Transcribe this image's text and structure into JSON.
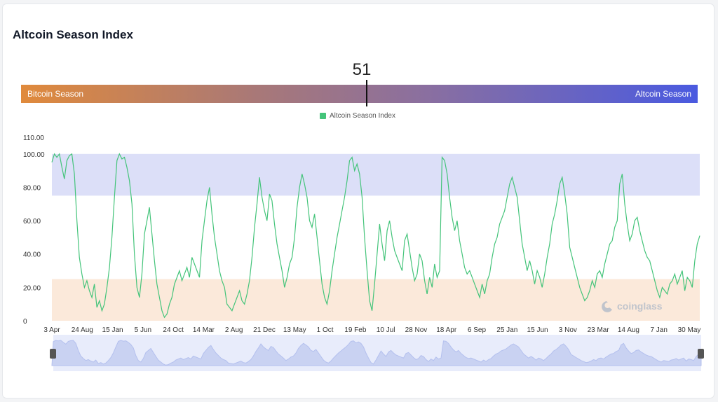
{
  "card": {
    "title": "Altcoin Season Index",
    "current_value": "51",
    "gradient_bar": {
      "left_label": "Bitcoin Season",
      "right_label": "Altcoin Season",
      "marker_value": 51
    },
    "watermark": "coinglass"
  },
  "chart_data": {
    "type": "line",
    "title": "",
    "xlabel": "",
    "ylabel": "",
    "ylim": [
      0,
      110
    ],
    "y_ticks": [
      "0",
      "20.00",
      "40.00",
      "60.00",
      "80.00",
      "100.00",
      "110.00"
    ],
    "x_ticks": [
      "3 Apr",
      "24 Aug",
      "15 Jan",
      "5 Jun",
      "24 Oct",
      "14 Mar",
      "2 Aug",
      "21 Dec",
      "13 May",
      "1 Oct",
      "19 Feb",
      "10 Jul",
      "28 Nov",
      "18 Apr",
      "6 Sep",
      "25 Jan",
      "15 Jun",
      "3 Nov",
      "23 Mar",
      "14 Aug",
      "7 Jan",
      "30 May"
    ],
    "legend": {
      "position": "top-center"
    },
    "zones": [
      {
        "name": "altcoin-season-zone",
        "from": 75,
        "to": 100,
        "color": "#dcdff8"
      },
      {
        "name": "bitcoin-season-zone",
        "from": 0,
        "to": 25,
        "color": "#fbe9da"
      }
    ],
    "series": [
      {
        "name": "Altcoin Season Index",
        "color": "#44c47a",
        "values": [
          95,
          100,
          98,
          100,
          92,
          85,
          96,
          99,
          100,
          88,
          60,
          38,
          28,
          20,
          24,
          18,
          14,
          22,
          8,
          12,
          6,
          10,
          20,
          32,
          50,
          74,
          96,
          100,
          97,
          98,
          92,
          84,
          70,
          40,
          20,
          14,
          28,
          52,
          60,
          68,
          52,
          36,
          22,
          14,
          6,
          2,
          4,
          10,
          14,
          22,
          26,
          30,
          24,
          28,
          32,
          26,
          38,
          34,
          30,
          26,
          48,
          60,
          72,
          80,
          64,
          50,
          40,
          30,
          24,
          20,
          10,
          8,
          6,
          10,
          14,
          18,
          12,
          10,
          16,
          24,
          38,
          56,
          70,
          86,
          74,
          66,
          60,
          76,
          72,
          58,
          46,
          38,
          30,
          20,
          26,
          34,
          38,
          50,
          68,
          80,
          88,
          82,
          74,
          60,
          56,
          64,
          50,
          36,
          22,
          14,
          10,
          18,
          30,
          40,
          50,
          58,
          66,
          74,
          84,
          96,
          98,
          90,
          94,
          88,
          74,
          50,
          30,
          12,
          6,
          22,
          40,
          58,
          46,
          36,
          54,
          60,
          50,
          42,
          38,
          34,
          30,
          48,
          52,
          42,
          32,
          24,
          28,
          40,
          36,
          24,
          16,
          26,
          20,
          34,
          26,
          30,
          98,
          96,
          88,
          74,
          62,
          54,
          60,
          48,
          40,
          32,
          28,
          30,
          26,
          22,
          18,
          14,
          22,
          16,
          24,
          28,
          38,
          46,
          50,
          58,
          62,
          66,
          74,
          82,
          86,
          80,
          74,
          60,
          46,
          38,
          30,
          36,
          30,
          22,
          30,
          26,
          20,
          28,
          38,
          46,
          58,
          64,
          72,
          82,
          86,
          76,
          64,
          44,
          38,
          32,
          26,
          20,
          16,
          12,
          14,
          18,
          24,
          20,
          28,
          30,
          26,
          34,
          40,
          46,
          48,
          56,
          60,
          82,
          88,
          70,
          58,
          48,
          52,
          60,
          62,
          54,
          48,
          42,
          38,
          36,
          30,
          24,
          18,
          14,
          20,
          18,
          16,
          22,
          24,
          28,
          22,
          26,
          30,
          18,
          26,
          24,
          20,
          36,
          46,
          51
        ]
      }
    ]
  }
}
